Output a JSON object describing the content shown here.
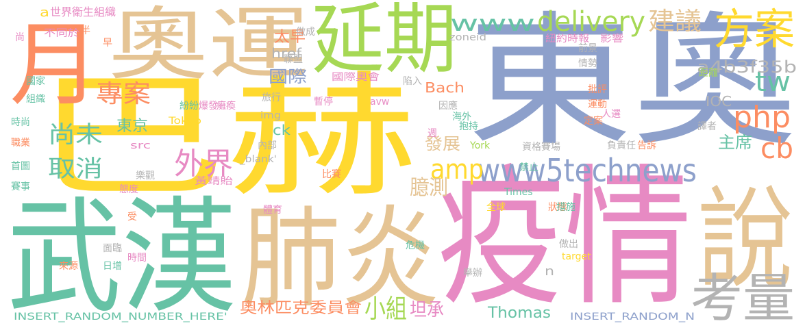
{
  "colors": {
    "teal": "#66c2a5",
    "orange": "#fc8d62",
    "blue": "#8da0cb",
    "pink": "#e78ac3",
    "green": "#a6d854",
    "yellow": "#ffd92f",
    "tan": "#e5c494",
    "gray": "#b3b3b3"
  },
  "words": [
    {
      "text": "東奧",
      "color": "blue"
    },
    {
      "text": "巴赫",
      "color": "yellow"
    },
    {
      "text": "疫情",
      "color": "pink"
    },
    {
      "text": "武漢",
      "color": "teal"
    },
    {
      "text": "肺炎",
      "color": "tan"
    },
    {
      "text": "奧運",
      "color": "tan"
    },
    {
      "text": "延期",
      "color": "green"
    },
    {
      "text": "說",
      "color": "tan"
    },
    {
      "text": "月",
      "color": "orange"
    },
    {
      "text": "方案",
      "color": "yellow"
    },
    {
      "text": "考量",
      "color": "gray"
    },
    {
      "text": "www5technews",
      "color": "blue"
    },
    {
      "text": "www",
      "color": "teal"
    },
    {
      "text": "delivery",
      "color": "green"
    },
    {
      "text": "建議",
      "color": "tan"
    },
    {
      "text": "php",
      "color": "orange"
    },
    {
      "text": "tw",
      "color": "teal"
    },
    {
      "text": "cb",
      "color": "orange"
    },
    {
      "text": "amp",
      "color": "yellow"
    },
    {
      "text": "專案",
      "color": "orange"
    },
    {
      "text": "外界",
      "color": "pink"
    },
    {
      "text": "尚未",
      "color": "teal"
    },
    {
      "text": "取消",
      "color": "teal"
    },
    {
      "text": "小組",
      "color": "green"
    },
    {
      "text": "奧林匹克委員會",
      "color": "orange"
    },
    {
      "text": "臆測",
      "color": "tan"
    },
    {
      "text": "坦承",
      "color": "pink"
    },
    {
      "text": "Thomas",
      "color": "teal"
    },
    {
      "text": "主席",
      "color": "teal"
    },
    {
      "text": "a4b3f35b",
      "color": "gray"
    },
    {
      "text": "發展",
      "color": "tan"
    },
    {
      "text": "國際",
      "color": "blue"
    },
    {
      "text": "東京",
      "color": "teal"
    },
    {
      "text": "太早",
      "color": "orange"
    },
    {
      "text": "href",
      "color": "gray"
    },
    {
      "text": "Bach",
      "color": "orange"
    },
    {
      "text": "IOC",
      "color": "gray"
    },
    {
      "text": "a",
      "color": "yellow"
    },
    {
      "text": "世界衛生組織",
      "color": "pink"
    },
    {
      "text": "不同於",
      "color": "pink"
    },
    {
      "text": "n",
      "color": "gray"
    },
    {
      "text": "ck",
      "color": "teal"
    },
    {
      "text": "INSERT_RANDOM_NUMBER_HERE'",
      "color": "teal"
    },
    {
      "text": "INSERT_RANDOM_N",
      "color": "blue"
    },
    {
      "text": "zoneid",
      "color": "gray"
    },
    {
      "text": "紐約時報",
      "color": "pink"
    },
    {
      "text": "影響",
      "color": "pink"
    },
    {
      "text": "國際奧會",
      "color": "pink"
    },
    {
      "text": "Tokyo",
      "color": "yellow"
    },
    {
      "text": "黃靖貽",
      "color": "pink"
    },
    {
      "text": "_blank'",
      "color": "gray"
    },
    {
      "text": "img",
      "color": "gray"
    },
    {
      "text": "src",
      "color": "pink"
    },
    {
      "text": "危機",
      "color": "teal"
    },
    {
      "text": "態度",
      "color": "pink"
    },
    {
      "text": "樂觀",
      "color": "gray"
    },
    {
      "text": "內部",
      "color": "gray"
    },
    {
      "text": "旅行",
      "color": "gray"
    },
    {
      "text": "暫停",
      "color": "pink"
    },
    {
      "text": "avw",
      "color": "pink"
    },
    {
      "text": "海外",
      "color": "teal"
    },
    {
      "text": "York",
      "color": "green"
    },
    {
      "text": "禁止",
      "color": "teal"
    },
    {
      "text": "全球",
      "color": "yellow"
    },
    {
      "text": "Times",
      "color": "teal"
    },
    {
      "text": "狀態",
      "color": "orange"
    },
    {
      "text": "措施",
      "color": "teal"
    },
    {
      "text": "target",
      "color": "yellow"
    },
    {
      "text": "做出",
      "color": "gray"
    },
    {
      "text": "舉辦",
      "color": "gray"
    },
    {
      "text": "比賽",
      "color": "orange"
    },
    {
      "text": "體育",
      "color": "pink"
    },
    {
      "text": "資格賽場",
      "color": "gray"
    },
    {
      "text": "負責任",
      "color": "gray"
    },
    {
      "text": "告訴",
      "color": "orange"
    },
    {
      "text": "譯者",
      "color": "gray"
    },
    {
      "text": "人選",
      "color": "pink"
    },
    {
      "text": "定案",
      "color": "orange"
    },
    {
      "text": "運動",
      "color": "orange"
    },
    {
      "text": "距離",
      "color": "green"
    },
    {
      "text": "批評",
      "color": "orange"
    },
    {
      "text": "情勢",
      "color": "gray"
    },
    {
      "text": "前景",
      "color": "gray"
    },
    {
      "text": "抱持",
      "color": "teal"
    },
    {
      "text": "因應",
      "color": "gray"
    },
    {
      "text": "週",
      "color": "pink"
    },
    {
      "text": "陷入",
      "color": "gray"
    },
    {
      "text": "做成",
      "color": "gray"
    },
    {
      "text": "聯盟",
      "color": "gray"
    },
    {
      "text": "紛紛",
      "color": "teal"
    },
    {
      "text": "爆發",
      "color": "pink"
    },
    {
      "text": "癱瘓",
      "color": "pink"
    },
    {
      "text": "國家",
      "color": "teal"
    },
    {
      "text": "組織",
      "color": "teal"
    },
    {
      "text": "時尚",
      "color": "teal"
    },
    {
      "text": "職業",
      "color": "orange"
    },
    {
      "text": "首圖",
      "color": "teal"
    },
    {
      "text": "賽事",
      "color": "teal"
    },
    {
      "text": "尚",
      "color": "pink"
    },
    {
      "text": "半",
      "color": "orange"
    },
    {
      "text": "早",
      "color": "orange"
    },
    {
      "text": "受",
      "color": "orange"
    },
    {
      "text": "面臨",
      "color": "gray"
    },
    {
      "text": "日增",
      "color": "teal"
    },
    {
      "text": "時間",
      "color": "pink"
    },
    {
      "text": "來源",
      "color": "orange"
    }
  ]
}
